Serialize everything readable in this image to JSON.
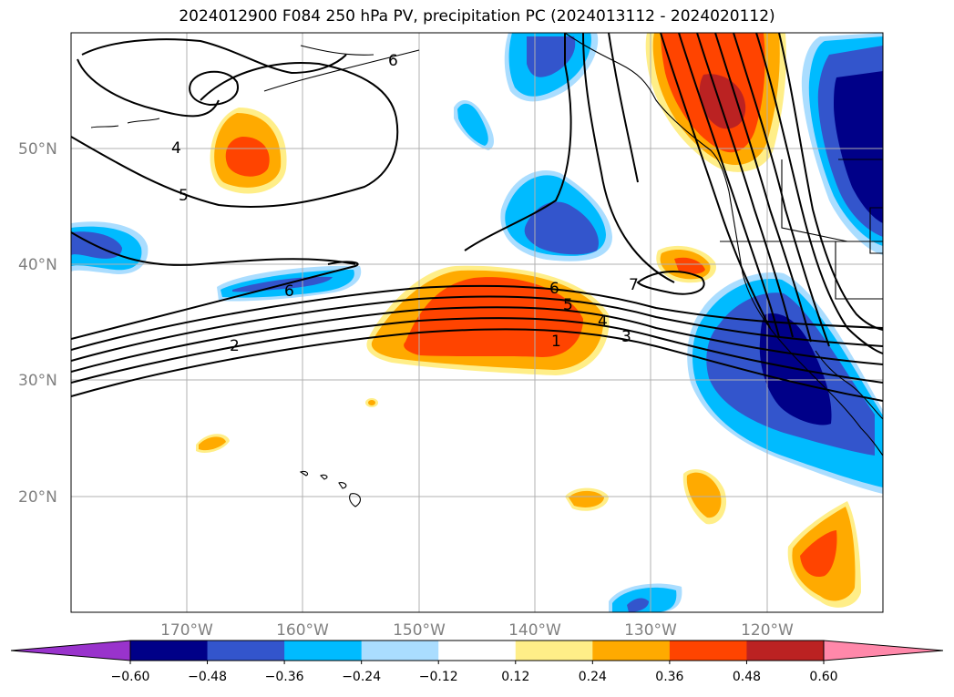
{
  "title": "2024012900 F084 250 hPa PV, precipitation PC (2024013112 - 2024020112)",
  "map": {
    "lat_ticks": [
      {
        "label": "50°N",
        "lat": 50
      },
      {
        "label": "40°N",
        "lat": 40
      },
      {
        "label": "30°N",
        "lat": 30
      },
      {
        "label": "20°N",
        "lat": 20
      }
    ],
    "lon_ticks": [
      {
        "label": "170°W",
        "lon": -170
      },
      {
        "label": "160°W",
        "lon": -160
      },
      {
        "label": "150°W",
        "lon": -150
      },
      {
        "label": "140°W",
        "lon": -140
      },
      {
        "label": "130°W",
        "lon": -130
      },
      {
        "label": "120°W",
        "lon": -120
      }
    ],
    "extent": {
      "lon_min": -180,
      "lon_max": -110,
      "lat_min": 10,
      "lat_max": 60
    },
    "contour_labels": [
      "1",
      "2",
      "3",
      "4",
      "4",
      "5",
      "5",
      "6",
      "6",
      "6",
      "7"
    ]
  },
  "colorbar": {
    "colors": [
      "#9933cc",
      "#000088",
      "#3355cc",
      "#00bbff",
      "#aaddff",
      "#ffffff",
      "#ffee88",
      "#ffaa00",
      "#ff4400",
      "#bb2222",
      "#ff88aa"
    ],
    "ticks": [
      "−0.60",
      "−0.48",
      "−0.36",
      "−0.24",
      "−0.12",
      "0.12",
      "0.24",
      "0.36",
      "0.48",
      "0.60"
    ]
  }
}
